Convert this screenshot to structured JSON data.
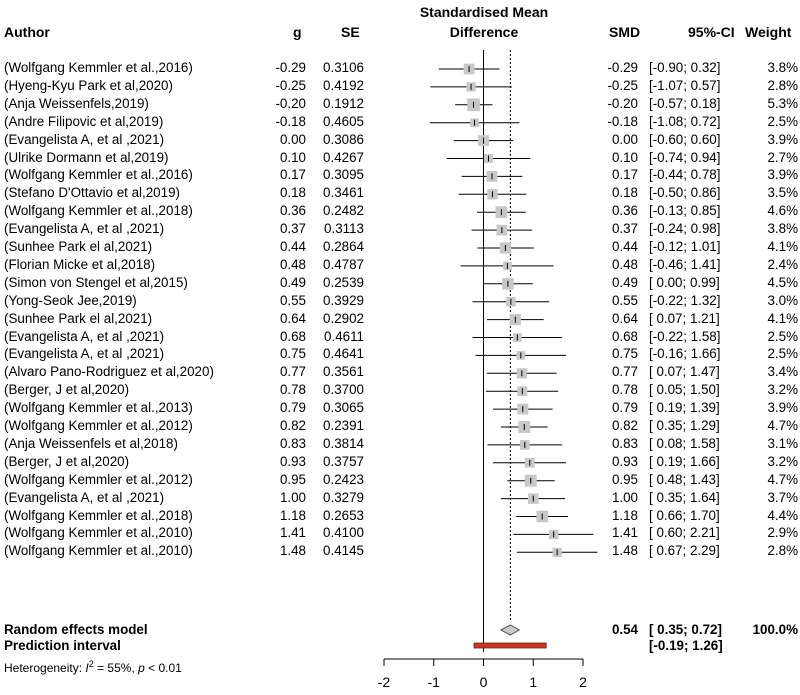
{
  "headers": {
    "author": "Author",
    "g": "g",
    "se": "SE",
    "plot_line1": "Standardised Mean",
    "plot_line2": "Difference",
    "smd": "SMD",
    "ci": "95%-CI",
    "weight": "Weight"
  },
  "studies": [
    {
      "author": "(Wolfgang Kemmler et al.,2016)",
      "g": "-0.29",
      "se": "0.3106",
      "smd": "-0.29",
      "ci": "[-0.90; 0.32]",
      "weight": "3.8%",
      "est": -0.29,
      "lo": -0.9,
      "hi": 0.32,
      "w": 3.8
    },
    {
      "author": "(Hyeng-Kyu Park et al,2020)",
      "g": "-0.25",
      "se": "0.4192",
      "smd": "-0.25",
      "ci": "[-1.07; 0.57]",
      "weight": "2.8%",
      "est": -0.25,
      "lo": -1.07,
      "hi": 0.57,
      "w": 2.8
    },
    {
      "author": "(Anja Weissenfels,2019)",
      "g": "-0.20",
      "se": "0.1912",
      "smd": "-0.20",
      "ci": "[-0.57; 0.18]",
      "weight": "5.3%",
      "est": -0.2,
      "lo": -0.57,
      "hi": 0.18,
      "w": 5.3
    },
    {
      "author": "(Andre Filipovic et al,2019)",
      "g": "-0.18",
      "se": "0.4605",
      "smd": "-0.18",
      "ci": "[-1.08; 0.72]",
      "weight": "2.5%",
      "est": -0.18,
      "lo": -1.08,
      "hi": 0.72,
      "w": 2.5
    },
    {
      "author": "(Evangelista A, et al ,2021)",
      "g": "0.00",
      "se": "0.3086",
      "smd": "0.00",
      "ci": "[-0.60; 0.60]",
      "weight": "3.9%",
      "est": 0.0,
      "lo": -0.6,
      "hi": 0.6,
      "w": 3.9
    },
    {
      "author": "(Ulrike Dormann et al,2019)",
      "g": "0.10",
      "se": "0.4267",
      "smd": "0.10",
      "ci": "[-0.74; 0.94]",
      "weight": "2.7%",
      "est": 0.1,
      "lo": -0.74,
      "hi": 0.94,
      "w": 2.7
    },
    {
      "author": "(Wolfgang Kemmler et al.,2016)",
      "g": "0.17",
      "se": "0.3095",
      "smd": "0.17",
      "ci": "[-0.44; 0.78]",
      "weight": "3.9%",
      "est": 0.17,
      "lo": -0.44,
      "hi": 0.78,
      "w": 3.9
    },
    {
      "author": "(Stefano D'Ottavio et al,2019)",
      "g": "0.18",
      "se": "0.3461",
      "smd": "0.18",
      "ci": "[-0.50; 0.86]",
      "weight": "3.5%",
      "est": 0.18,
      "lo": -0.5,
      "hi": 0.86,
      "w": 3.5
    },
    {
      "author": "(Wolfgang Kemmler et al.,2018)",
      "g": "0.36",
      "se": "0.2482",
      "smd": "0.36",
      "ci": "[-0.13; 0.85]",
      "weight": "4.6%",
      "est": 0.36,
      "lo": -0.13,
      "hi": 0.85,
      "w": 4.6
    },
    {
      "author": "(Evangelista A, et al ,2021)",
      "g": "0.37",
      "se": "0.3113",
      "smd": "0.37",
      "ci": "[-0.24; 0.98]",
      "weight": "3.8%",
      "est": 0.37,
      "lo": -0.24,
      "hi": 0.98,
      "w": 3.8
    },
    {
      "author": "(Sunhee Park el al,2021)",
      "g": "0.44",
      "se": "0.2864",
      "smd": "0.44",
      "ci": "[-0.12; 1.01]",
      "weight": "4.1%",
      "est": 0.44,
      "lo": -0.12,
      "hi": 1.01,
      "w": 4.1
    },
    {
      "author": "(Florian Micke et al,2018)",
      "g": "0.48",
      "se": "0.4787",
      "smd": "0.48",
      "ci": "[-0.46; 1.41]",
      "weight": "2.4%",
      "est": 0.48,
      "lo": -0.46,
      "hi": 1.41,
      "w": 2.4
    },
    {
      "author": "(Simon von Stengel et al,2015)",
      "g": "0.49",
      "se": "0.2539",
      "smd": "0.49",
      "ci": "[ 0.00; 0.99]",
      "weight": "4.5%",
      "est": 0.49,
      "lo": 0.0,
      "hi": 0.99,
      "w": 4.5
    },
    {
      "author": "(Yong-Seok Jee,2019)",
      "g": "0.55",
      "se": "0.3929",
      "smd": "0.55",
      "ci": "[-0.22; 1.32]",
      "weight": "3.0%",
      "est": 0.55,
      "lo": -0.22,
      "hi": 1.32,
      "w": 3.0
    },
    {
      "author": "(Sunhee Park el al,2021)",
      "g": "0.64",
      "se": "0.2902",
      "smd": "0.64",
      "ci": "[ 0.07; 1.21]",
      "weight": "4.1%",
      "est": 0.64,
      "lo": 0.07,
      "hi": 1.21,
      "w": 4.1
    },
    {
      "author": "(Evangelista A, et al ,2021)",
      "g": "0.68",
      "se": "0.4611",
      "smd": "0.68",
      "ci": "[-0.22; 1.58]",
      "weight": "2.5%",
      "est": 0.68,
      "lo": -0.22,
      "hi": 1.58,
      "w": 2.5
    },
    {
      "author": "(Evangelista A, et al ,2021)",
      "g": "0.75",
      "se": "0.4641",
      "smd": "0.75",
      "ci": "[-0.16; 1.66]",
      "weight": "2.5%",
      "est": 0.75,
      "lo": -0.16,
      "hi": 1.66,
      "w": 2.5
    },
    {
      "author": "(Alvaro Pano-Rodriguez et al,2020)",
      "g": "0.77",
      "se": "0.3561",
      "smd": "0.77",
      "ci": "[ 0.07; 1.47]",
      "weight": "3.4%",
      "est": 0.77,
      "lo": 0.07,
      "hi": 1.47,
      "w": 3.4
    },
    {
      "author": "(Berger, J et al,2020)",
      "g": "0.78",
      "se": "0.3700",
      "smd": "0.78",
      "ci": "[ 0.05; 1.50]",
      "weight": "3.2%",
      "est": 0.78,
      "lo": 0.05,
      "hi": 1.5,
      "w": 3.2
    },
    {
      "author": "(Wolfgang Kemmler et al.,2013)",
      "g": "0.79",
      "se": "0.3065",
      "smd": "0.79",
      "ci": "[ 0.19; 1.39]",
      "weight": "3.9%",
      "est": 0.79,
      "lo": 0.19,
      "hi": 1.39,
      "w": 3.9
    },
    {
      "author": "(Wolfgang Kemmler et al.,2012)",
      "g": "0.82",
      "se": "0.2391",
      "smd": "0.82",
      "ci": "[ 0.35; 1.29]",
      "weight": "4.7%",
      "est": 0.82,
      "lo": 0.35,
      "hi": 1.29,
      "w": 4.7
    },
    {
      "author": "(Anja Weissenfels et al,2018)",
      "g": "0.83",
      "se": "0.3814",
      "smd": "0.83",
      "ci": "[ 0.08; 1.58]",
      "weight": "3.1%",
      "est": 0.83,
      "lo": 0.08,
      "hi": 1.58,
      "w": 3.1
    },
    {
      "author": "(Berger, J et al,2020)",
      "g": "0.93",
      "se": "0.3757",
      "smd": "0.93",
      "ci": "[ 0.19; 1.66]",
      "weight": "3.2%",
      "est": 0.93,
      "lo": 0.19,
      "hi": 1.66,
      "w": 3.2
    },
    {
      "author": "(Wolfgang Kemmler et al.,2012)",
      "g": "0.95",
      "se": "0.2423",
      "smd": "0.95",
      "ci": "[ 0.48; 1.43]",
      "weight": "4.7%",
      "est": 0.95,
      "lo": 0.48,
      "hi": 1.43,
      "w": 4.7
    },
    {
      "author": "(Evangelista A, et al ,2021)",
      "g": "1.00",
      "se": "0.3279",
      "smd": "1.00",
      "ci": "[ 0.35; 1.64]",
      "weight": "3.7%",
      "est": 1.0,
      "lo": 0.35,
      "hi": 1.64,
      "w": 3.7
    },
    {
      "author": "(Wolfgang Kemmler et al.,2018)",
      "g": "1.18",
      "se": "0.2653",
      "smd": "1.18",
      "ci": "[ 0.66; 1.70]",
      "weight": "4.4%",
      "est": 1.18,
      "lo": 0.66,
      "hi": 1.7,
      "w": 4.4
    },
    {
      "author": "(Wolfgang Kemmler et al.,2010)",
      "g": "1.41",
      "se": "0.4100",
      "smd": "1.41",
      "ci": "[ 0.60; 2.21]",
      "weight": "2.9%",
      "est": 1.41,
      "lo": 0.6,
      "hi": 2.21,
      "w": 2.9
    },
    {
      "author": "(Wolfgang Kemmler et al.,2010)",
      "g": "1.48",
      "se": "0.4145",
      "smd": "1.48",
      "ci": "[ 0.67; 2.29]",
      "weight": "2.8%",
      "est": 1.48,
      "lo": 0.67,
      "hi": 2.29,
      "w": 2.8
    }
  ],
  "summary": {
    "model_label": "Random effects model",
    "model_smd": "0.54",
    "model_ci": "[ 0.35; 0.72]",
    "model_weight": "100.0%",
    "model_est": 0.54,
    "model_lo": 0.35,
    "model_hi": 0.72,
    "pi_label": "Prediction interval",
    "pi_ci": "[-0.19; 1.26]",
    "pi_lo": -0.19,
    "pi_hi": 1.26,
    "het_prefix": "Heterogeneity: ",
    "het_i2": "I",
    "het_sup": "2",
    "het_rest": " = 55%, ",
    "het_p": "p",
    "het_pval": " < 0.01"
  },
  "chart_data": {
    "type": "forest",
    "title": "Standardised Mean Difference",
    "xlim": [
      -2,
      2
    ],
    "xticks": [
      -2,
      -1,
      0,
      1,
      2
    ],
    "xtick_labels": [
      "-2",
      "-1",
      "0",
      "1",
      "2"
    ],
    "null_line": 0,
    "summary_line": 0.54,
    "colors": {
      "box": "#c8c8c8",
      "diamond": "#c8c8c8",
      "pi": "#c0392b",
      "line": "#000000"
    }
  }
}
